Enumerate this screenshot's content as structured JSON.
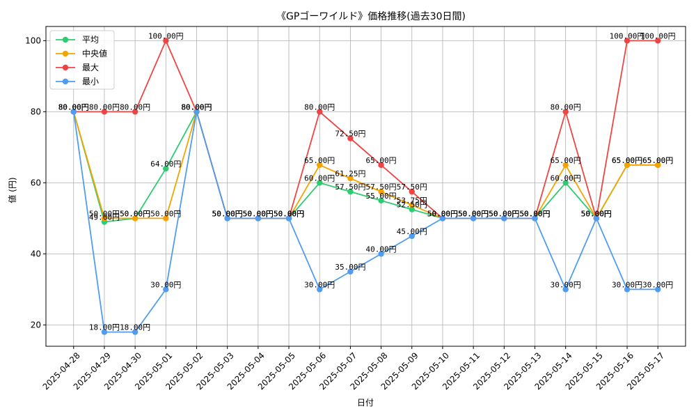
{
  "chart_data": {
    "type": "line",
    "title": "《GPゴーワイルド》価格推移(過去30日間)",
    "xlabel": "日付",
    "ylabel": "値 (円)",
    "ylim": [
      14,
      104
    ],
    "yticks": [
      20,
      40,
      60,
      80,
      100
    ],
    "grid": true,
    "legend_position": "top-left",
    "label_suffix": "円",
    "x": [
      "2025-04-28",
      "2025-04-29",
      "2025-04-30",
      "2025-05-01",
      "2025-05-02",
      "2025-05-03",
      "2025-05-04",
      "2025-05-05",
      "2025-05-06",
      "2025-05-07",
      "2025-05-08",
      "2025-05-09",
      "2025-05-10",
      "2025-05-11",
      "2025-05-12",
      "2025-05-13",
      "2025-05-14",
      "2025-05-15",
      "2025-05-16",
      "2025-05-17"
    ],
    "series": [
      {
        "name": "平均",
        "color": "#2ecc71",
        "values": [
          80,
          49,
          50,
          64,
          80,
          50,
          50,
          50,
          60,
          57.5,
          55,
          52.5,
          50,
          50,
          50,
          50,
          60,
          50,
          65,
          65
        ]
      },
      {
        "name": "中央値",
        "color": "#f5a300",
        "values": [
          80,
          50,
          50,
          50,
          80,
          50,
          50,
          50,
          65,
          61.25,
          57.5,
          53.75,
          50,
          50,
          50,
          50,
          65,
          50,
          65,
          65
        ]
      },
      {
        "name": "最大",
        "color": "#ef4444",
        "values": [
          80,
          80,
          80,
          100,
          80,
          50,
          50,
          50,
          80,
          72.5,
          65,
          57.5,
          50,
          50,
          50,
          50,
          80,
          50,
          100,
          100
        ]
      },
      {
        "name": "最小",
        "color": "#4f9cf0",
        "values": [
          80,
          18,
          18,
          30,
          80,
          50,
          50,
          50,
          30,
          35,
          40,
          45,
          50,
          50,
          50,
          50,
          30,
          50,
          30,
          30
        ]
      }
    ]
  }
}
